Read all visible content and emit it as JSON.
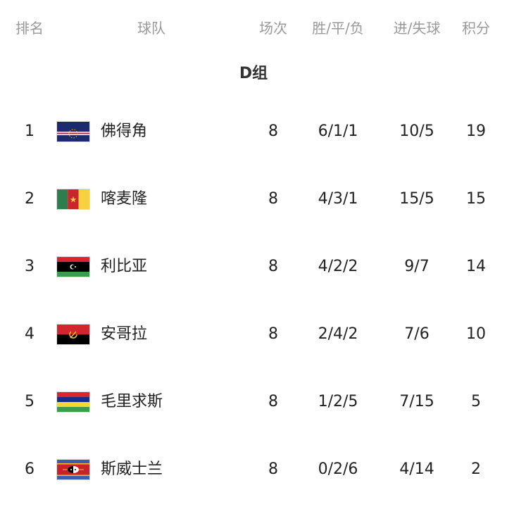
{
  "header": {
    "rank": "排名",
    "team": "球队",
    "played": "场次",
    "wdl": "胜/平/负",
    "goals": "进/失球",
    "points": "积分"
  },
  "group_title": "D组",
  "rows": [
    {
      "rank": "1",
      "team": "佛得角",
      "flag": "cape-verde-flag",
      "played": "8",
      "wdl": "6/1/1",
      "goals": "10/5",
      "points": "19"
    },
    {
      "rank": "2",
      "team": "喀麦隆",
      "flag": "cameroon-flag",
      "played": "8",
      "wdl": "4/3/1",
      "goals": "15/5",
      "points": "15"
    },
    {
      "rank": "3",
      "team": "利比亚",
      "flag": "libya-flag",
      "played": "8",
      "wdl": "4/2/2",
      "goals": "9/7",
      "points": "14"
    },
    {
      "rank": "4",
      "team": "安哥拉",
      "flag": "angola-flag",
      "played": "8",
      "wdl": "2/4/2",
      "goals": "7/6",
      "points": "10"
    },
    {
      "rank": "5",
      "team": "毛里求斯",
      "flag": "mauritius-flag",
      "played": "8",
      "wdl": "1/2/5",
      "goals": "7/15",
      "points": "5"
    },
    {
      "rank": "6",
      "team": "斯威士兰",
      "flag": "eswatini-flag",
      "played": "8",
      "wdl": "0/2/6",
      "goals": "4/14",
      "points": "2"
    }
  ]
}
